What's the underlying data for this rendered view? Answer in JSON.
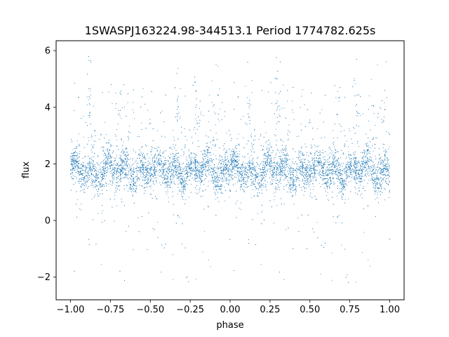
{
  "chart_data": {
    "type": "scatter",
    "title": "1SWASPJ163224.98-344513.1 Period 1774782.625s",
    "xlabel": "phase",
    "ylabel": "flux",
    "xlim": [
      -1.09,
      1.09
    ],
    "ylim": [
      -2.8,
      6.35
    ],
    "xticks": [
      -1.0,
      -0.75,
      -0.5,
      -0.25,
      0.0,
      0.25,
      0.5,
      0.75,
      1.0
    ],
    "xtick_labels": [
      "−1.00",
      "−0.75",
      "−0.50",
      "−0.25",
      "0.00",
      "0.25",
      "0.50",
      "0.75",
      "1.00"
    ],
    "yticks": [
      -2,
      0,
      2,
      4,
      6
    ],
    "ytick_labels": [
      "−2",
      "0",
      "2",
      "4",
      "6"
    ],
    "grid": false,
    "marker_color": "#1f77b4",
    "series": [
      {
        "phase_range": [
          -1.0,
          1.0
        ],
        "baseline_flux": 1.75,
        "baseline_scatter": 0.3,
        "flare_flux_max": 6.0,
        "dip_flux_min": -2.3,
        "approx_points": 9000
      }
    ]
  }
}
